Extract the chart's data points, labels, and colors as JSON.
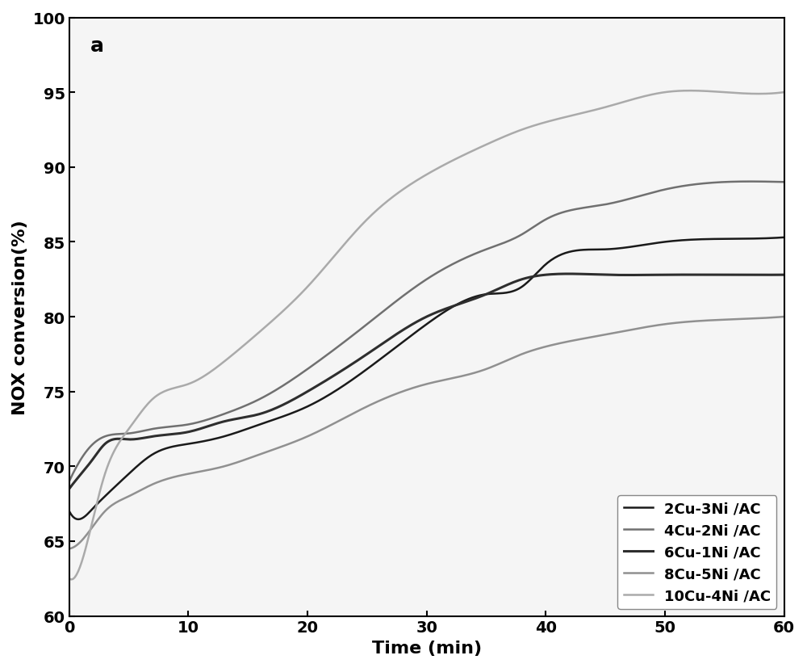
{
  "title": "",
  "xlabel": "Time (min)",
  "ylabel": "NOX conversion(%)",
  "annotation": "a",
  "xlim": [
    0,
    60
  ],
  "ylim": [
    60,
    100
  ],
  "xticks": [
    0,
    10,
    20,
    30,
    40,
    50,
    60
  ],
  "yticks": [
    60,
    65,
    70,
    75,
    80,
    85,
    90,
    95,
    100
  ],
  "background_color": "#ffffff",
  "series": [
    {
      "label": "2Cu-3Ni /AC",
      "color": "#1a1a1a",
      "linewidth": 1.8,
      "x": [
        0,
        1,
        2,
        3,
        5,
        7,
        10,
        13,
        16,
        20,
        25,
        30,
        35,
        38,
        40,
        45,
        50,
        55,
        60
      ],
      "y": [
        67.0,
        66.5,
        67.2,
        68.0,
        69.5,
        70.8,
        71.5,
        72.0,
        72.8,
        74.0,
        76.5,
        79.5,
        81.5,
        82.0,
        83.5,
        84.5,
        85.0,
        85.2,
        85.3
      ]
    },
    {
      "label": "4Cu-2Ni /AC",
      "color": "#707070",
      "linewidth": 1.8,
      "x": [
        0,
        1,
        2,
        3,
        5,
        7,
        10,
        13,
        16,
        20,
        25,
        30,
        35,
        38,
        40,
        45,
        50,
        55,
        60
      ],
      "y": [
        69.0,
        70.5,
        71.5,
        72.0,
        72.2,
        72.5,
        72.8,
        73.5,
        74.5,
        76.5,
        79.5,
        82.5,
        84.5,
        85.5,
        86.5,
        87.5,
        88.5,
        89.0,
        89.0
      ]
    },
    {
      "label": "6Cu-1Ni /AC",
      "color": "#2e2e2e",
      "linewidth": 2.2,
      "x": [
        0,
        1,
        2,
        3,
        5,
        7,
        10,
        13,
        16,
        20,
        25,
        30,
        35,
        38,
        40,
        45,
        50,
        55,
        60
      ],
      "y": [
        68.5,
        69.5,
        70.5,
        71.5,
        71.8,
        72.0,
        72.3,
        73.0,
        73.5,
        75.0,
        77.5,
        80.0,
        81.5,
        82.5,
        82.8,
        82.8,
        82.8,
        82.8,
        82.8
      ]
    },
    {
      "label": "8Cu-5Ni /AC",
      "color": "#909090",
      "linewidth": 1.8,
      "x": [
        0,
        1,
        2,
        3,
        5,
        7,
        10,
        13,
        16,
        20,
        25,
        30,
        35,
        38,
        40,
        45,
        50,
        55,
        60
      ],
      "y": [
        64.5,
        65.0,
        66.0,
        67.0,
        68.0,
        68.8,
        69.5,
        70.0,
        70.8,
        72.0,
        74.0,
        75.5,
        76.5,
        77.5,
        78.0,
        78.8,
        79.5,
        79.8,
        80.0
      ]
    },
    {
      "label": "10Cu-4Ni /AC",
      "color": "#aaaaaa",
      "linewidth": 1.8,
      "x": [
        0,
        1,
        2,
        3,
        5,
        7,
        10,
        13,
        16,
        20,
        25,
        30,
        35,
        38,
        40,
        45,
        50,
        55,
        60
      ],
      "y": [
        62.5,
        63.5,
        66.5,
        69.5,
        72.5,
        74.5,
        75.5,
        77.0,
        79.0,
        82.0,
        86.5,
        89.5,
        91.5,
        92.5,
        93.0,
        94.0,
        95.0,
        95.0,
        95.0
      ]
    }
  ],
  "legend_loc": "lower right",
  "legend_fontsize": 13,
  "axis_fontsize": 16,
  "tick_fontsize": 14,
  "annotation_fontsize": 18
}
